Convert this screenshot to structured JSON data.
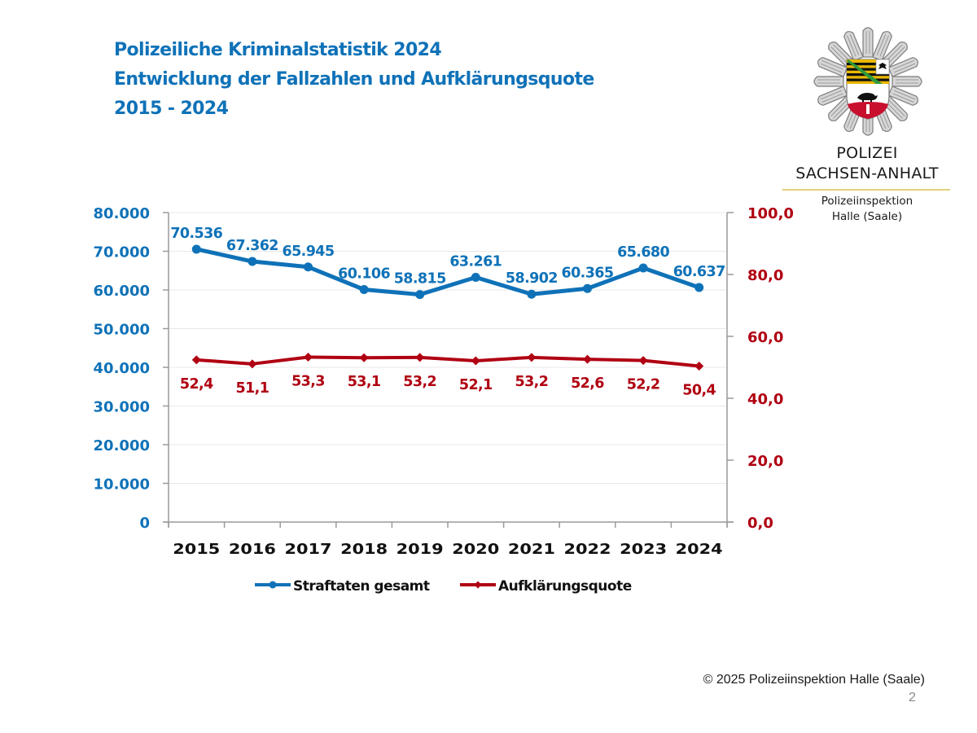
{
  "title": {
    "line1": "Polizeiliche Kriminalstatistik 2024",
    "line2": "Entwicklung der Fallzahlen und Aufklärungsquote",
    "line3": "2015 - 2024"
  },
  "logo": {
    "icon": "police-star-emblem-icon",
    "line1": "POLIZEI",
    "line2": "SACHSEN-ANHALT",
    "sub1": "Polizeiinspektion",
    "sub2": "Halle (Saale)"
  },
  "footer": {
    "copyright": "© 2025 Polizeiinspektion Halle (Saale)",
    "page_number": "2"
  },
  "colors": {
    "title": "#0f72b8",
    "series_blue": "#0f72b8",
    "series_red": "#b00012",
    "axis": "#9a9a9a",
    "grid": "#e8e8e8"
  },
  "chart_data": {
    "type": "line",
    "title": "Entwicklung der Fallzahlen und Aufklärungsquote",
    "categories": [
      "2015",
      "2016",
      "2017",
      "2018",
      "2019",
      "2020",
      "2021",
      "2022",
      "2023",
      "2024"
    ],
    "series": [
      {
        "name": "Straftaten gesamt",
        "axis": "left",
        "color": "#0f72b8",
        "marker": "circle",
        "values": [
          70536,
          67362,
          65945,
          60106,
          58815,
          63261,
          58902,
          60365,
          65680,
          60637
        ],
        "labels": [
          "70.536",
          "67.362",
          "65.945",
          "60.106",
          "58.815",
          "63.261",
          "58.902",
          "60.365",
          "65.680",
          "60.637"
        ],
        "label_position": "above"
      },
      {
        "name": "Aufklärungsquote",
        "axis": "right",
        "color": "#b00012",
        "marker": "diamond",
        "values": [
          52.4,
          51.1,
          53.3,
          53.1,
          53.2,
          52.1,
          53.2,
          52.6,
          52.2,
          50.4
        ],
        "labels": [
          "52,4",
          "51,1",
          "53,3",
          "53,1",
          "53,2",
          "52,1",
          "53,2",
          "52,6",
          "52,2",
          "50,4"
        ],
        "label_position": "below"
      }
    ],
    "y_left": {
      "range": [
        0,
        80000
      ],
      "ticks": [
        0,
        10000,
        20000,
        30000,
        40000,
        50000,
        60000,
        70000,
        80000
      ],
      "tick_labels": [
        "0",
        "10.000",
        "20.000",
        "30.000",
        "40.000",
        "50.000",
        "60.000",
        "70.000",
        "80.000"
      ]
    },
    "y_right": {
      "range": [
        0,
        100
      ],
      "ticks": [
        0,
        20,
        40,
        60,
        80,
        100
      ],
      "tick_labels": [
        "0,0",
        "20,0",
        "40,0",
        "60,0",
        "80,0",
        "100,0"
      ]
    },
    "grid": true,
    "legend": "bottom"
  }
}
